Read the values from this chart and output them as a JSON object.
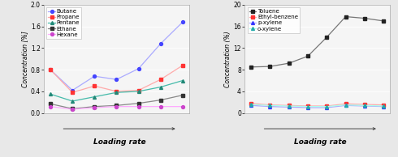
{
  "left": {
    "ylabel": "Concentration [%]",
    "xlabel": "Loading rate",
    "ylim": [
      0.0,
      2.0
    ],
    "yticks": [
      0.0,
      0.4,
      0.8,
      1.2,
      1.6,
      2.0
    ],
    "series": [
      {
        "label": "Butane",
        "color": "#aaaaff",
        "marker": "o",
        "markercolor": "#4444ff",
        "linestyle": "-",
        "values": [
          0.8,
          0.42,
          0.68,
          0.62,
          0.82,
          1.28,
          1.68
        ]
      },
      {
        "label": "Propane",
        "color": "#ffaaaa",
        "marker": "s",
        "markercolor": "#ff3333",
        "linestyle": "-",
        "values": [
          0.8,
          0.38,
          0.5,
          0.4,
          0.42,
          0.62,
          0.88
        ]
      },
      {
        "label": "Pentane",
        "color": "#44bbaa",
        "marker": "^",
        "markercolor": "#228877",
        "linestyle": "-",
        "values": [
          0.35,
          0.22,
          0.3,
          0.38,
          0.4,
          0.48,
          0.6
        ]
      },
      {
        "label": "Ethane",
        "color": "#888888",
        "marker": "s",
        "markercolor": "#333333",
        "linestyle": "-",
        "values": [
          0.17,
          0.08,
          0.12,
          0.14,
          0.18,
          0.24,
          0.33
        ]
      },
      {
        "label": "Hexane",
        "color": "#ffaaff",
        "marker": "o",
        "markercolor": "#cc44cc",
        "linestyle": "-",
        "values": [
          0.12,
          0.07,
          0.1,
          0.12,
          0.12,
          0.12,
          0.12
        ]
      }
    ],
    "n_points": 7
  },
  "right": {
    "ylabel": "Concentration (%)",
    "xlabel": "Loading rate",
    "ylim": [
      0,
      20
    ],
    "yticks": [
      0,
      4,
      8,
      12,
      16,
      20
    ],
    "series": [
      {
        "label": "Toluene",
        "color": "#777777",
        "marker": "s",
        "markercolor": "#222222",
        "linestyle": "-",
        "values": [
          8.5,
          8.6,
          9.2,
          10.5,
          14.0,
          17.8,
          17.5,
          17.0
        ]
      },
      {
        "label": "Ethyl-benzene",
        "color": "#ffaaaa",
        "marker": "s",
        "markercolor": "#ff3333",
        "linestyle": "-",
        "values": [
          1.8,
          1.5,
          1.4,
          1.3,
          1.3,
          1.7,
          1.6,
          1.5
        ]
      },
      {
        "label": "p-xylene",
        "color": "#aaaaff",
        "marker": "^",
        "markercolor": "#3333ff",
        "linestyle": "-",
        "values": [
          1.4,
          1.2,
          1.1,
          1.0,
          1.0,
          1.4,
          1.3,
          1.2
        ]
      },
      {
        "label": "o-xylene",
        "color": "#aaffee",
        "marker": "^",
        "markercolor": "#22aaaa",
        "linestyle": "-",
        "values": [
          1.6,
          1.4,
          1.3,
          1.2,
          1.2,
          1.5,
          1.4,
          1.3
        ]
      }
    ],
    "n_points": 8
  },
  "fig_bg": "#e8e8e8",
  "plot_bg": "#f5f5f5",
  "axis_border_color": "#aaaaaa",
  "grid_color": "#ffffff",
  "font_size": 5.5,
  "label_fontsize": 6.5,
  "tick_fontsize": 5.5,
  "legend_fontsize": 5.0
}
